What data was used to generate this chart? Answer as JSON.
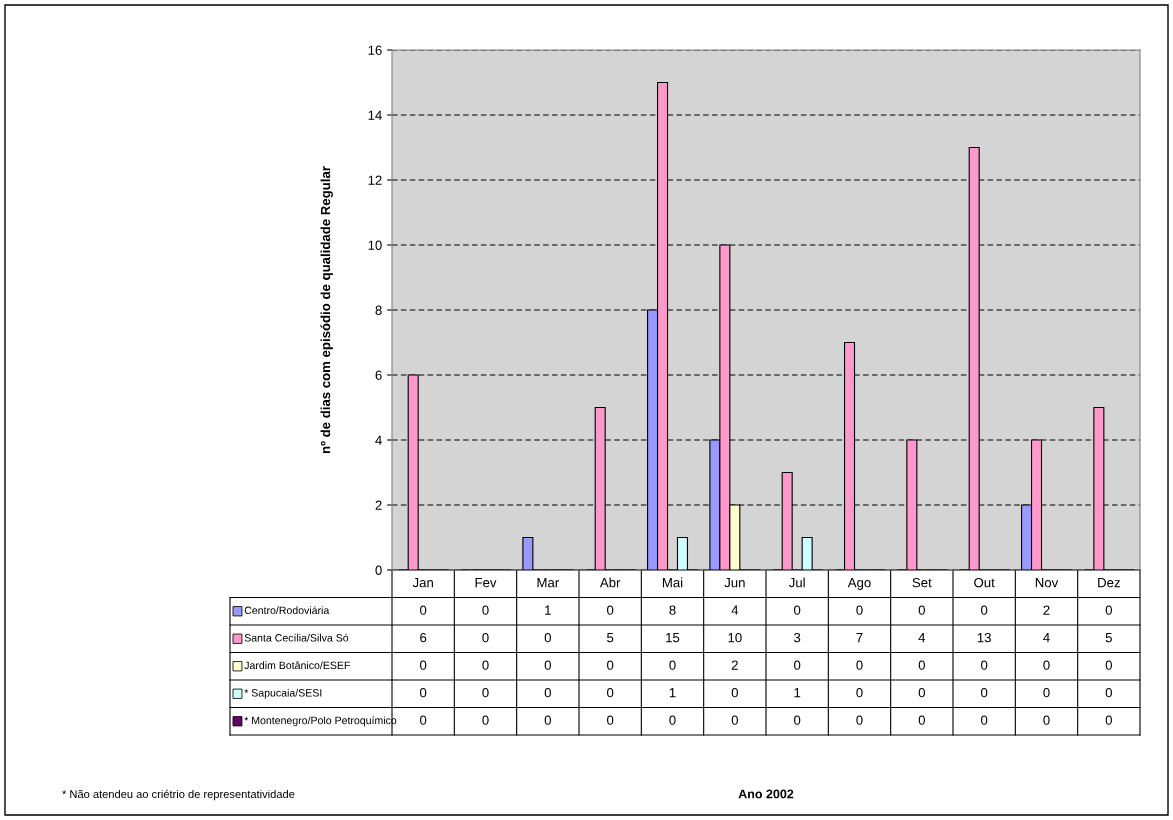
{
  "chart_data": {
    "type": "bar",
    "ylabel": "nº de dias com episódio de qualidade Regular",
    "categories": [
      "Jan",
      "Fev",
      "Mar",
      "Abr",
      "Mai",
      "Jun",
      "Jul",
      "Ago",
      "Set",
      "Out",
      "Nov",
      "Dez"
    ],
    "series": [
      {
        "name": "Centro/Rodoviária",
        "color": "#9999ff",
        "values": [
          0,
          0,
          1,
          0,
          8,
          4,
          0,
          0,
          0,
          0,
          2,
          0
        ]
      },
      {
        "name": "Santa Cecília/Silva Só",
        "color": "#ff99cc",
        "values": [
          6,
          0,
          0,
          5,
          15,
          10,
          3,
          7,
          4,
          13,
          4,
          5
        ]
      },
      {
        "name": "Jardim Botânico/ESEF",
        "color": "#ffffcc",
        "values": [
          0,
          0,
          0,
          0,
          0,
          2,
          0,
          0,
          0,
          0,
          0,
          0
        ]
      },
      {
        "name": "* Sapucaia/SESI",
        "color": "#ccffff",
        "values": [
          0,
          0,
          0,
          0,
          1,
          0,
          1,
          0,
          0,
          0,
          0,
          0
        ]
      },
      {
        "name": "* Montenegro/Polo Petroquímico",
        "color": "#660066",
        "values": [
          0,
          0,
          0,
          0,
          0,
          0,
          0,
          0,
          0,
          0,
          0,
          0
        ]
      }
    ],
    "ylim": [
      0,
      16
    ],
    "yticks": [
      0,
      2,
      4,
      6,
      8,
      10,
      12,
      14,
      16
    ],
    "grid": "y",
    "legend": "bottom left",
    "data_labels": true,
    "annotations": [
      "* Não atendeu ao criétrio de representatividade",
      "Ano 2002"
    ]
  }
}
